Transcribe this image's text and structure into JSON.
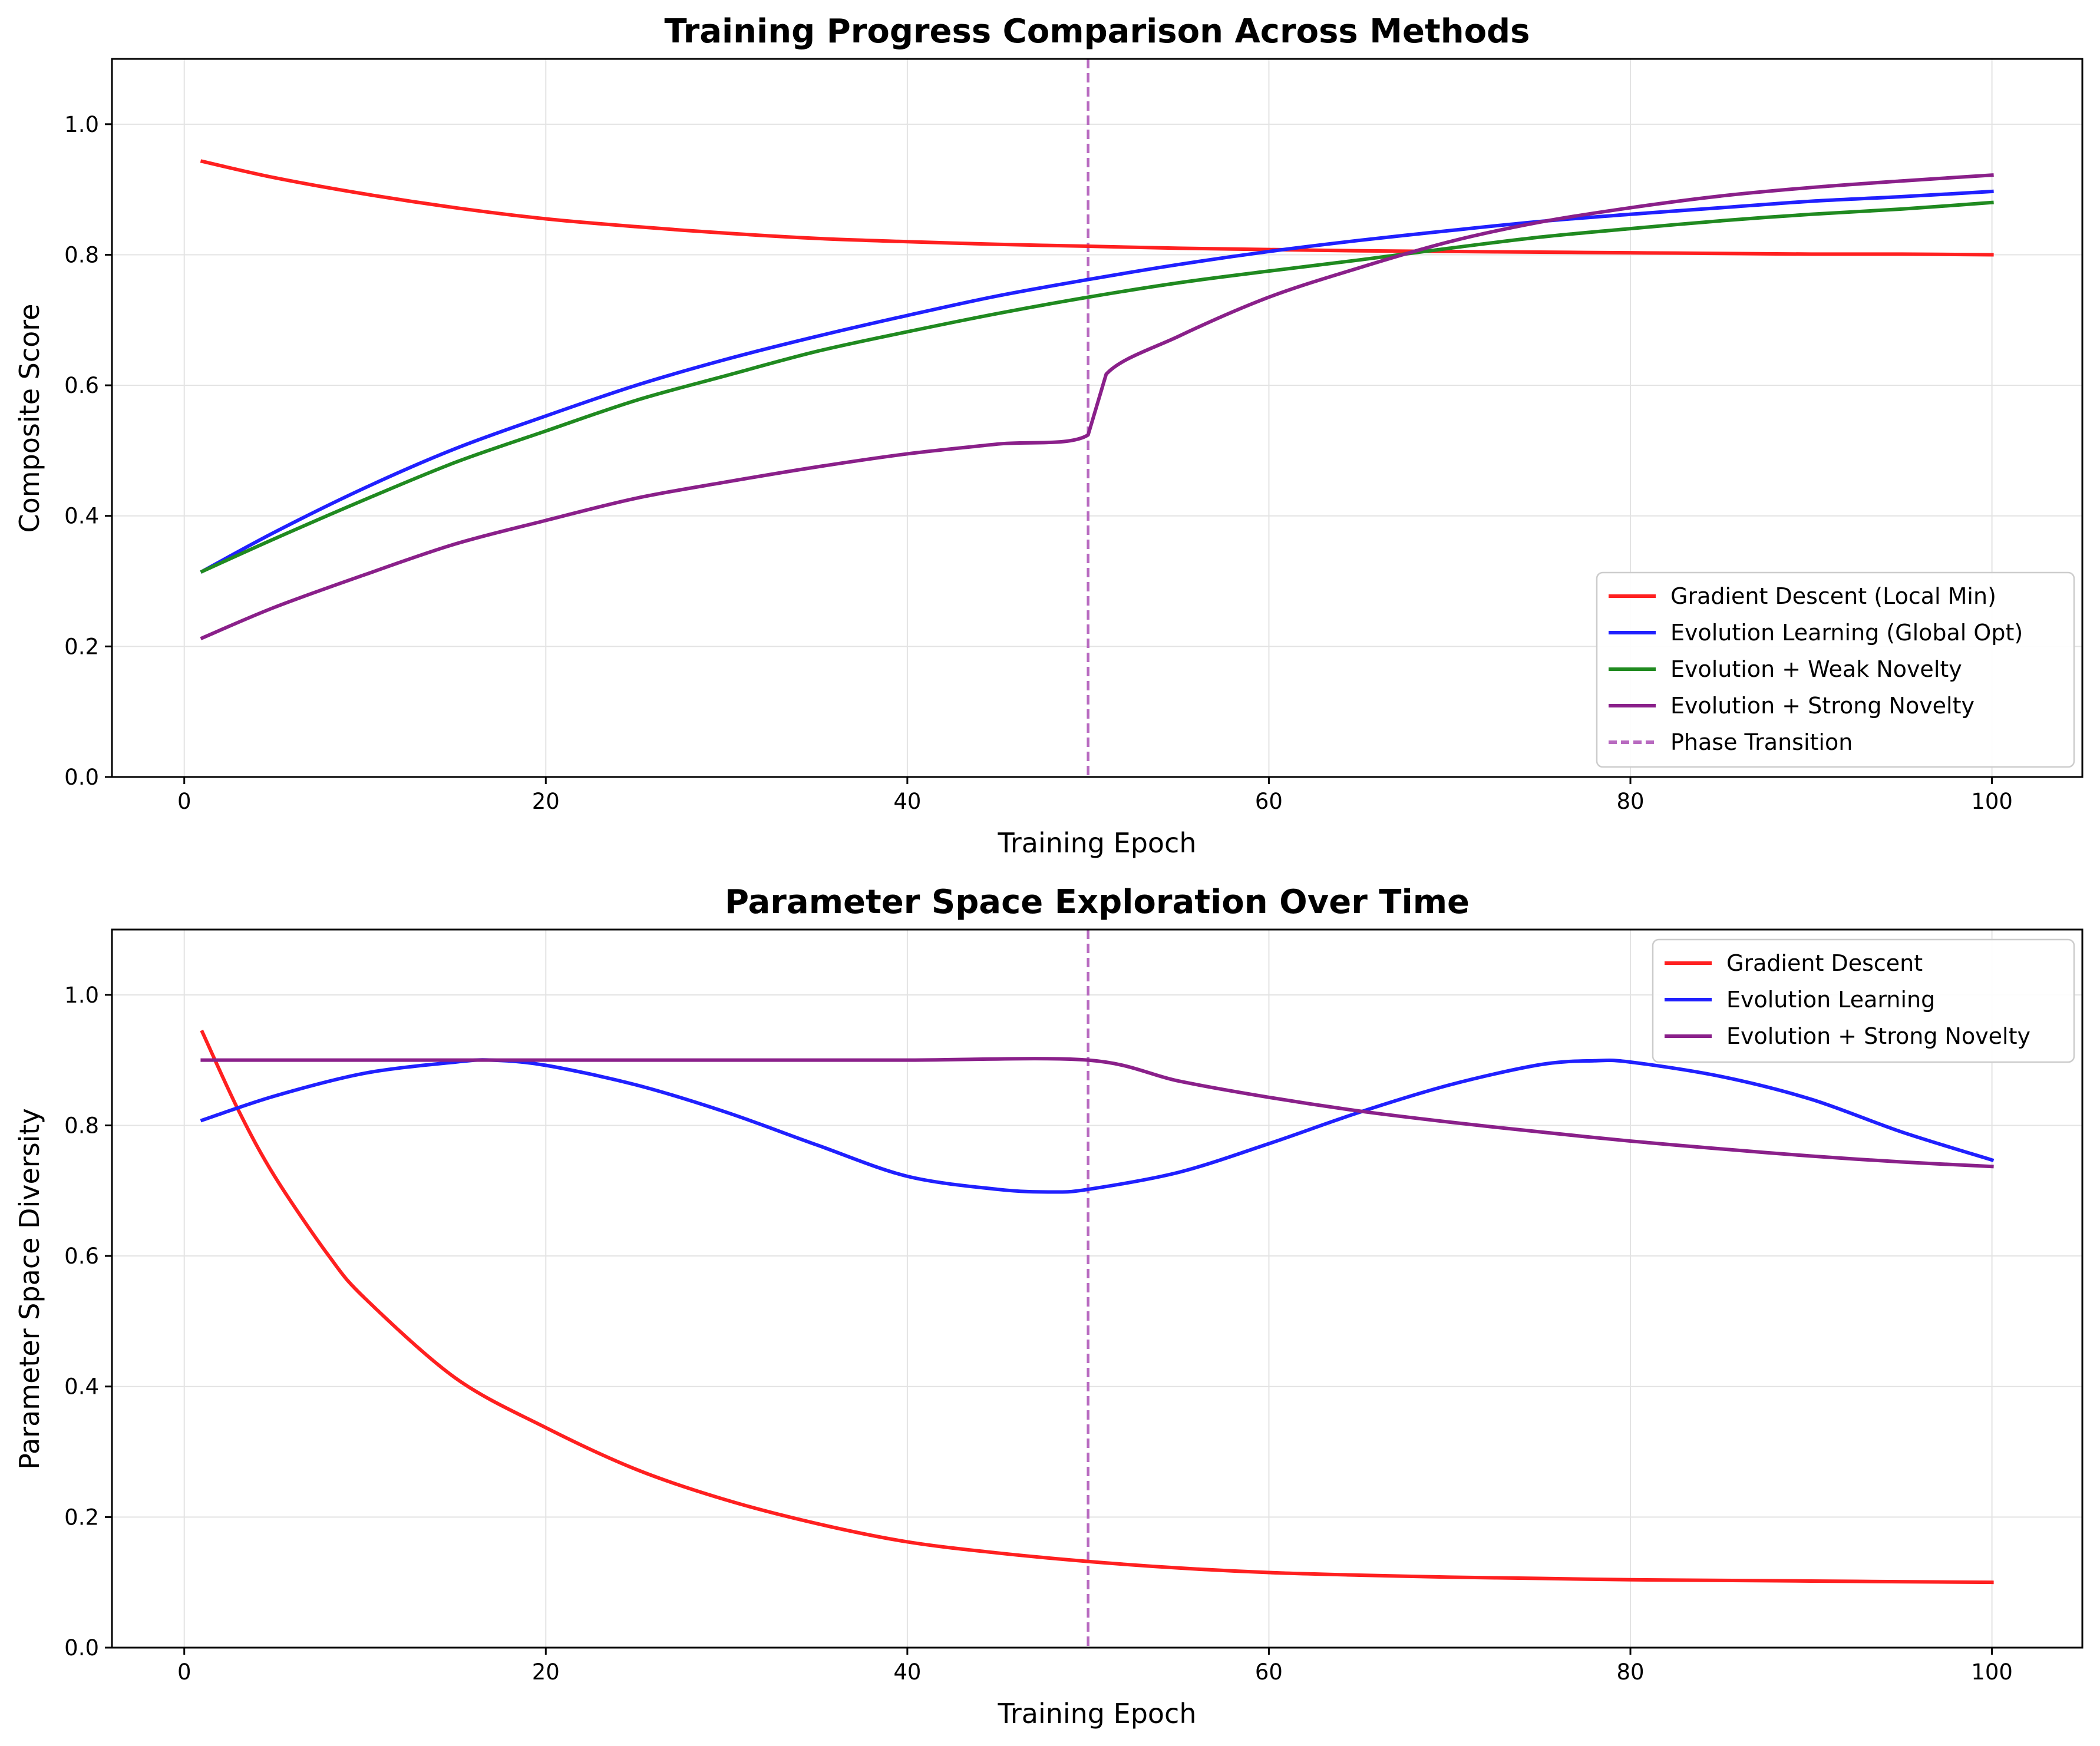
{
  "chart_data": [
    {
      "type": "line",
      "title": "Training Progress Comparison Across Methods",
      "xlabel": "Training Epoch",
      "ylabel": "Composite Score",
      "xlim": [
        -4,
        105
      ],
      "ylim": [
        0,
        1.1
      ],
      "xticks": [
        0,
        20,
        40,
        60,
        80,
        100
      ],
      "yticks": [
        0.0,
        0.2,
        0.4,
        0.6,
        0.8,
        1.0
      ],
      "grid": true,
      "legend_position": "lower-right",
      "series": [
        {
          "name": "Gradient Descent (Local Min)",
          "color": "#ff2020",
          "style": "solid",
          "x": [
            1,
            5,
            10,
            15,
            20,
            25,
            30,
            35,
            40,
            45,
            50,
            55,
            60,
            65,
            70,
            75,
            80,
            85,
            90,
            95,
            100
          ],
          "y": [
            0.943,
            0.918,
            0.893,
            0.872,
            0.855,
            0.843,
            0.833,
            0.825,
            0.82,
            0.816,
            0.813,
            0.81,
            0.808,
            0.806,
            0.805,
            0.804,
            0.803,
            0.802,
            0.801,
            0.801,
            0.8
          ]
        },
        {
          "name": "Evolution Learning (Global Opt)",
          "color": "#2020ff",
          "style": "solid",
          "x": [
            1,
            5,
            10,
            15,
            20,
            25,
            30,
            35,
            40,
            45,
            50,
            55,
            60,
            65,
            70,
            75,
            80,
            85,
            90,
            95,
            100
          ],
          "y": [
            0.315,
            0.375,
            0.443,
            0.503,
            0.553,
            0.6,
            0.64,
            0.675,
            0.707,
            0.737,
            0.762,
            0.785,
            0.805,
            0.822,
            0.837,
            0.851,
            0.862,
            0.872,
            0.882,
            0.889,
            0.897
          ]
        },
        {
          "name": "Evolution + Weak Novelty",
          "color": "#208a20",
          "style": "solid",
          "x": [
            1,
            5,
            10,
            15,
            20,
            25,
            30,
            35,
            40,
            45,
            50,
            55,
            60,
            65,
            70,
            75,
            80,
            85,
            90,
            95,
            100
          ],
          "y": [
            0.315,
            0.365,
            0.425,
            0.482,
            0.53,
            0.577,
            0.615,
            0.652,
            0.682,
            0.71,
            0.735,
            0.757,
            0.775,
            0.792,
            0.81,
            0.827,
            0.84,
            0.852,
            0.862,
            0.87,
            0.88
          ]
        },
        {
          "name": "Evolution + Strong Novelty",
          "color": "#8a208a",
          "style": "solid",
          "x": [
            1,
            5,
            10,
            15,
            20,
            25,
            30,
            35,
            40,
            45,
            50,
            51,
            55,
            60,
            65,
            70,
            75,
            80,
            85,
            90,
            95,
            100
          ],
          "y": [
            0.213,
            0.26,
            0.31,
            0.357,
            0.393,
            0.427,
            0.452,
            0.475,
            0.495,
            0.51,
            0.524,
            0.617,
            0.675,
            0.735,
            0.78,
            0.82,
            0.85,
            0.872,
            0.89,
            0.903,
            0.913,
            0.922
          ]
        },
        {
          "name": "Phase Transition",
          "color": "#b86ac0",
          "style": "dashed",
          "x": [
            50,
            50
          ],
          "y": [
            0,
            1.1
          ]
        }
      ]
    },
    {
      "type": "line",
      "title": "Parameter Space Exploration Over Time",
      "xlabel": "Training Epoch",
      "ylabel": "Parameter Space Diversity",
      "xlim": [
        -4,
        105
      ],
      "ylim": [
        0,
        1.1
      ],
      "xticks": [
        0,
        20,
        40,
        60,
        80,
        100
      ],
      "yticks": [
        0.0,
        0.2,
        0.4,
        0.6,
        0.8,
        1.0
      ],
      "grid": true,
      "legend_position": "upper-right",
      "vline_x": 50,
      "series": [
        {
          "name": "Gradient Descent",
          "color": "#ff2020",
          "style": "solid",
          "x": [
            1,
            3,
            5,
            8,
            10,
            15,
            20,
            25,
            30,
            35,
            40,
            45,
            50,
            55,
            60,
            65,
            70,
            75,
            80,
            85,
            90,
            95,
            100
          ],
          "y": [
            0.943,
            0.823,
            0.722,
            0.6,
            0.535,
            0.413,
            0.337,
            0.273,
            0.226,
            0.19,
            0.162,
            0.145,
            0.132,
            0.122,
            0.115,
            0.111,
            0.108,
            0.106,
            0.104,
            0.103,
            0.102,
            0.101,
            0.1
          ]
        },
        {
          "name": "Evolution Learning",
          "color": "#2020ff",
          "style": "solid",
          "x": [
            1,
            5,
            10,
            15,
            17,
            20,
            25,
            30,
            35,
            40,
            45,
            48,
            50,
            55,
            60,
            65,
            70,
            75,
            78,
            80,
            85,
            90,
            95,
            100
          ],
          "y": [
            0.808,
            0.845,
            0.88,
            0.897,
            0.9,
            0.892,
            0.862,
            0.82,
            0.77,
            0.722,
            0.702,
            0.698,
            0.702,
            0.728,
            0.772,
            0.82,
            0.862,
            0.893,
            0.899,
            0.897,
            0.875,
            0.84,
            0.79,
            0.747
          ]
        },
        {
          "name": "Evolution + Strong Novelty",
          "color": "#8a208a",
          "style": "solid",
          "x": [
            1,
            10,
            20,
            30,
            40,
            50,
            55,
            60,
            65,
            70,
            75,
            80,
            85,
            90,
            95,
            100
          ],
          "y": [
            0.9,
            0.9,
            0.9,
            0.9,
            0.9,
            0.9,
            0.868,
            0.843,
            0.822,
            0.805,
            0.79,
            0.776,
            0.764,
            0.753,
            0.744,
            0.737
          ]
        }
      ]
    }
  ]
}
